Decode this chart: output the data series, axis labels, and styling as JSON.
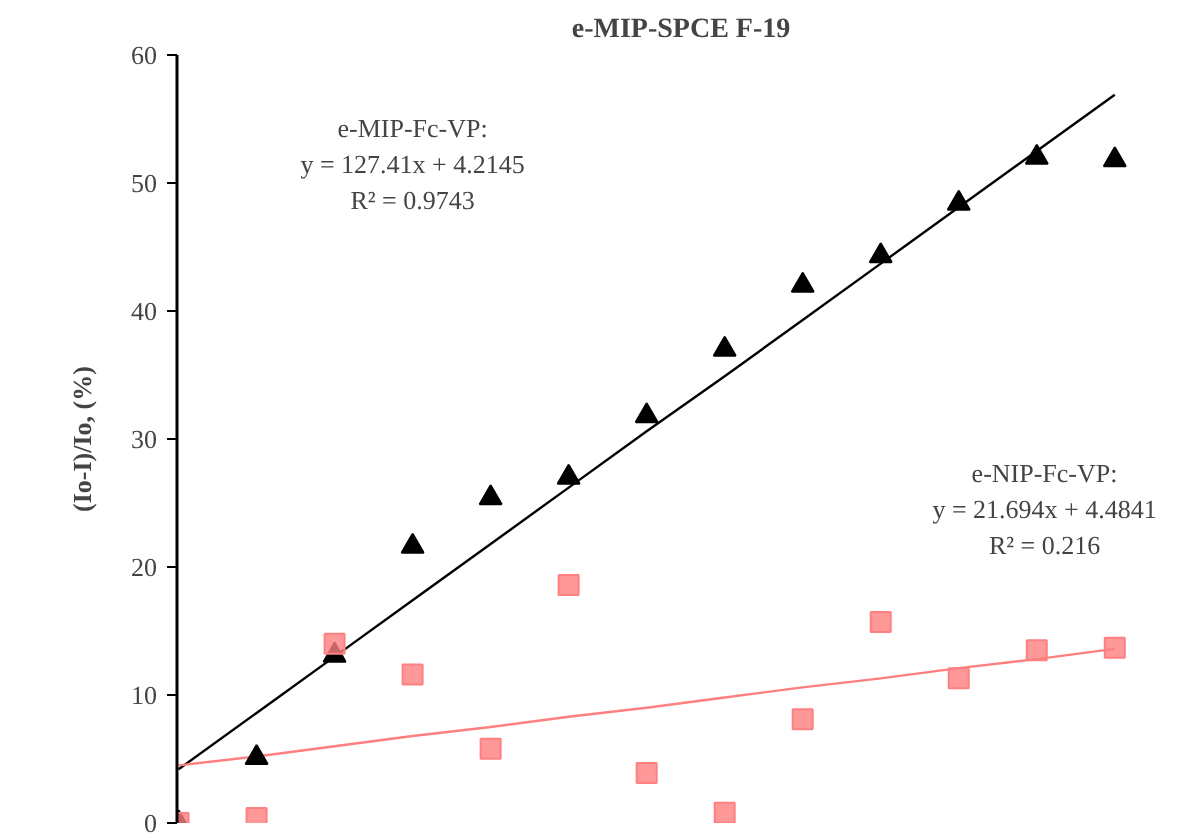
{
  "chart_data": {
    "type": "scatter",
    "title": "e-MIP-SPCE F-19",
    "ylabel": "(Io-I)/Io, (%)",
    "categories": [
      null,
      null,
      null,
      null,
      null,
      null,
      null,
      null,
      null,
      null,
      null,
      null,
      null
    ],
    "ylim": [
      0,
      60
    ],
    "yticks": [
      0,
      10,
      20,
      30,
      40,
      50,
      60
    ],
    "grid": false,
    "tick_labels": "y",
    "series": [
      {
        "marker": "triangle",
        "color": "#000000",
        "values": [
          0,
          5.1,
          13.1,
          21.6,
          25.4,
          27.0,
          31.8,
          37.0,
          42.0,
          44.3,
          48.4,
          52.0,
          51.8
        ]
      },
      {
        "marker": "square",
        "color": "#ff8080",
        "values": [
          0,
          0.4,
          14.0,
          11.6,
          5.8,
          18.6,
          3.9,
          0.8,
          8.1,
          15.7,
          11.3,
          13.5,
          13.7
        ]
      },
      {
        "type": "line",
        "line_style": "solid",
        "color": "#000000",
        "values": [
          4.2,
          8.6,
          13.0,
          17.4,
          21.8,
          26.2,
          30.6,
          34.9,
          39.3,
          43.7,
          48.1,
          52.5,
          56.9
        ]
      },
      {
        "type": "line",
        "line_style": "solid",
        "color": "#ff7f7f",
        "values": [
          4.5,
          5.2,
          6.0,
          6.8,
          7.5,
          8.3,
          9.0,
          9.8,
          10.6,
          11.3,
          12.1,
          12.8,
          13.6
        ]
      }
    ],
    "annotations": [
      "e-MIP-Fc-VP:\ny = 127.41x + 4.2145\nR² = 0.9743",
      "e-NIP-Fc-VP:\ny = 21.694x + 4.4841\nR² = 0.216"
    ]
  }
}
